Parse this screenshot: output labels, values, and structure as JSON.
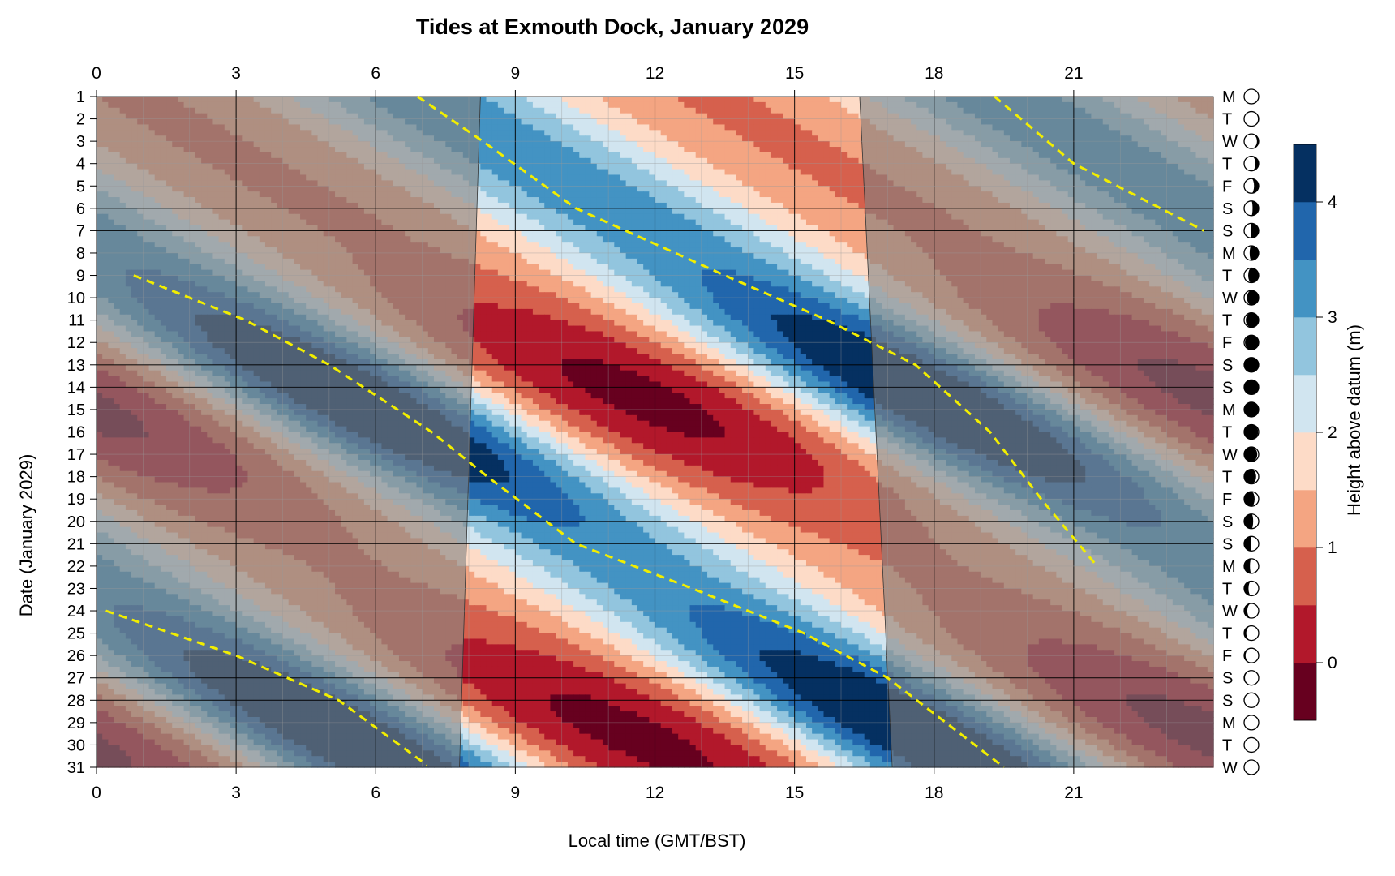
{
  "chart_data": {
    "type": "heatmap",
    "title": "Tides at Exmouth Dock, January 2029",
    "xlabel": "Local time (GMT/BST)",
    "ylabel": "Date (January 2029)",
    "colorbar_label": "Height above datum (m)",
    "x_range": [
      0,
      24
    ],
    "x_ticks": [
      0,
      3,
      6,
      9,
      12,
      15,
      18,
      21
    ],
    "y_range": [
      1,
      31
    ],
    "y_ticks": [
      1,
      2,
      3,
      4,
      5,
      6,
      7,
      8,
      9,
      10,
      11,
      12,
      13,
      14,
      15,
      16,
      17,
      18,
      19,
      20,
      21,
      22,
      23,
      24,
      25,
      26,
      27,
      28,
      29,
      30,
      31
    ],
    "weekday_labels": [
      "M",
      "T",
      "W",
      "T",
      "F",
      "S",
      "S",
      "M",
      "T",
      "W",
      "T",
      "F",
      "S",
      "S",
      "M",
      "T",
      "W",
      "T",
      "F",
      "S",
      "S",
      "M",
      "T",
      "W",
      "T",
      "F",
      "S",
      "S",
      "M",
      "T",
      "W"
    ],
    "moon_illumination": [
      0.0,
      0.05,
      0.12,
      0.22,
      0.32,
      0.42,
      0.52,
      0.62,
      0.72,
      0.8,
      0.88,
      0.94,
      0.98,
      1.0,
      1.0,
      0.96,
      0.9,
      0.82,
      0.72,
      0.62,
      0.5,
      0.4,
      0.3,
      0.22,
      0.15,
      0.1,
      0.06,
      0.03,
      0.01,
      0.0,
      0.0
    ],
    "moon_waxing": [
      true,
      true,
      true,
      true,
      true,
      true,
      true,
      true,
      true,
      true,
      true,
      true,
      true,
      true,
      true,
      false,
      false,
      false,
      false,
      false,
      false,
      false,
      false,
      false,
      false,
      false,
      false,
      false,
      false,
      false,
      false
    ],
    "color_levels": [
      -0.5,
      0,
      0.5,
      1,
      1.5,
      2,
      2.5,
      3,
      3.5,
      4,
      4.5
    ],
    "colorbar_ticks": [
      0,
      1,
      2,
      3,
      4
    ],
    "colors": [
      "#67001f",
      "#b2182b",
      "#d6604d",
      "#f4a582",
      "#fddbc7",
      "#d1e5f0",
      "#92c5de",
      "#4393c3",
      "#2166ac",
      "#053061"
    ],
    "daylight": {
      "sunrise": [
        [
          1,
          8.25
        ],
        [
          31,
          7.8
        ]
      ],
      "sunset": [
        [
          1,
          16.4
        ],
        [
          31,
          17.1
        ]
      ],
      "night_shading": "#808080"
    },
    "tide_model": {
      "mean": 2.0,
      "amplitude_min": 1.2,
      "amplitude_max": 2.45,
      "springs_days": [
        14.5,
        29.5
      ],
      "high_water_time_day1": 7.0,
      "daily_shift_hours": 0.81,
      "semidiurnal_period_hours": 12.42
    },
    "high_tide_trend_lines": [
      {
        "points": [
          [
            6.9,
            1
          ],
          [
            8.3,
            3
          ],
          [
            10.3,
            6
          ],
          [
            13.5,
            9
          ],
          [
            15.7,
            11
          ],
          [
            17.6,
            13
          ],
          [
            19.2,
            16
          ],
          [
            20.3,
            19
          ],
          [
            21.5,
            22
          ]
        ]
      },
      {
        "points": [
          [
            19.3,
            1
          ],
          [
            21.0,
            4
          ],
          [
            23.8,
            7
          ]
        ]
      },
      {
        "points": [
          [
            0.8,
            9
          ],
          [
            3.2,
            11
          ],
          [
            5.0,
            13
          ],
          [
            7.2,
            16
          ],
          [
            8.4,
            18
          ],
          [
            10.3,
            21
          ],
          [
            12.8,
            23
          ],
          [
            15.2,
            25
          ],
          [
            17.0,
            27
          ],
          [
            19.5,
            31
          ]
        ]
      },
      {
        "points": [
          [
            0.2,
            24
          ],
          [
            3.0,
            26
          ],
          [
            5.2,
            28
          ],
          [
            7.1,
            30.9
          ]
        ]
      }
    ]
  }
}
